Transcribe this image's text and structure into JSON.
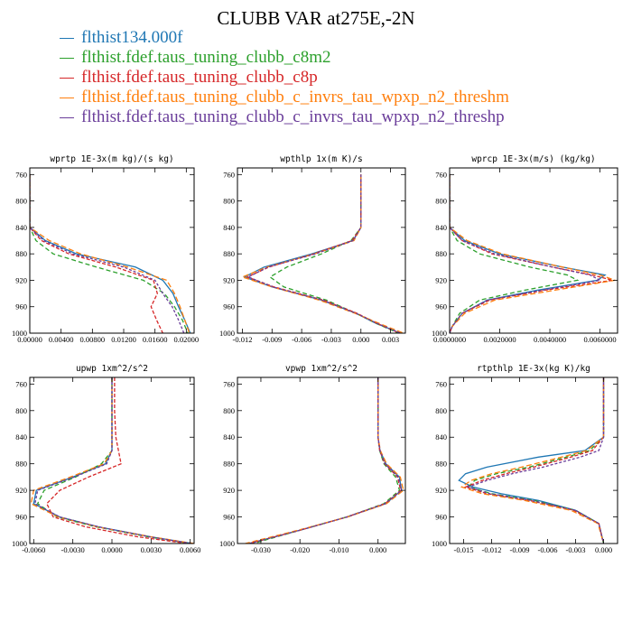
{
  "title": "CLUBB VAR at275E,-2N",
  "legend": [
    {
      "label": "flthist134.000f",
      "color": "#1f77b4"
    },
    {
      "label": "flthist.fdef.taus_tuning_clubb_c8m2",
      "color": "#2ca02c"
    },
    {
      "label": "flthist.fdef.taus_tuning_clubb_c8p",
      "color": "#d62728"
    },
    {
      "label": "flthist.fdef.taus_tuning_clubb_c_invrs_tau_wpxp_n2_threshm",
      "color": "#ff7f0e"
    },
    {
      "label": "flthist.fdef.taus_tuning_clubb_c_invrs_tau_wpxp_n2_threshp",
      "color": "#6a3d9a"
    }
  ],
  "chart_data": [
    {
      "type": "line",
      "title": "wprtp  1E-3x(m kg)/(s kg)",
      "xlim": [
        0.0,
        0.021
      ],
      "ylim": [
        1000,
        750
      ],
      "y_reversed": true,
      "xticks": [
        "0.00000",
        "0.00400",
        "0.00800",
        "0.01200",
        "0.01600",
        "0.02000"
      ],
      "xtick_values": [
        0,
        0.004,
        0.008,
        0.012,
        0.016,
        0.02
      ],
      "yticks": [
        760,
        800,
        840,
        880,
        920,
        960,
        1000
      ],
      "y": [
        760,
        800,
        840,
        860,
        880,
        900,
        920,
        940,
        960,
        980,
        1000
      ],
      "series": [
        {
          "name": "flthist134.000f",
          "values": [
            0,
            0,
            0,
            0.002,
            0.006,
            0.0135,
            0.017,
            0.0183,
            0.019,
            0.0198,
            0.0205
          ]
        },
        {
          "name": "flthist.fdef.taus_tuning_clubb_c8m2",
          "values": [
            0,
            0,
            0,
            0.0008,
            0.003,
            0.0085,
            0.0145,
            0.0172,
            0.0185,
            0.0195,
            0.0202
          ]
        },
        {
          "name": "flthist.fdef.taus_tuning_clubb_c8p",
          "values": [
            0,
            0,
            0,
            0.0015,
            0.005,
            0.011,
            0.0158,
            0.0163,
            0.0155,
            0.0162,
            0.017
          ]
        },
        {
          "name": "flthist.fdef.taus_tuning_clubb_c_invrs_tau_wpxp_n2_threshm",
          "values": [
            0,
            0,
            0,
            0.0025,
            0.0065,
            0.0125,
            0.0175,
            0.0185,
            0.0192,
            0.0198,
            0.0204
          ]
        },
        {
          "name": "flthist.fdef.taus_tuning_clubb_c_invrs_tau_wpxp_n2_threshp",
          "values": [
            0,
            0,
            0,
            0.0018,
            0.0055,
            0.012,
            0.016,
            0.017,
            0.0182,
            0.019,
            0.0197
          ]
        }
      ]
    },
    {
      "type": "line",
      "title": "wpthlp  1x(m K)/s",
      "xlim": [
        -0.0125,
        0.0045
      ],
      "ylim": [
        1000,
        750
      ],
      "y_reversed": true,
      "xticks": [
        "-0.012",
        "-0.009",
        "-0.006",
        "-0.003",
        "0.000",
        "0.003"
      ],
      "xtick_values": [
        -0.012,
        -0.009,
        -0.006,
        -0.003,
        0,
        0.003
      ],
      "yticks": [
        760,
        800,
        840,
        880,
        920,
        960,
        1000
      ],
      "y": [
        760,
        800,
        840,
        860,
        880,
        900,
        915,
        930,
        950,
        970,
        985,
        1000
      ],
      "series": [
        {
          "name": "flthist134.000f",
          "values": [
            0,
            0,
            0,
            -0.0008,
            -0.005,
            -0.0098,
            -0.0118,
            -0.009,
            -0.004,
            -0.0005,
            0.0015,
            0.004
          ]
        },
        {
          "name": "flthist.fdef.taus_tuning_clubb_c8m2",
          "values": [
            0,
            0,
            0,
            -0.001,
            -0.004,
            -0.0075,
            -0.0092,
            -0.0078,
            -0.0035,
            -0.0005,
            0.0015,
            0.0038
          ]
        },
        {
          "name": "flthist.fdef.taus_tuning_clubb_c8p",
          "values": [
            0,
            0,
            0,
            -0.0009,
            -0.0048,
            -0.0093,
            -0.0115,
            -0.0088,
            -0.0038,
            -0.0004,
            0.0016,
            0.0039
          ]
        },
        {
          "name": "flthist.fdef.taus_tuning_clubb_c_invrs_tau_wpxp_n2_threshm",
          "values": [
            0,
            0,
            0,
            -0.0007,
            -0.0047,
            -0.0095,
            -0.012,
            -0.009,
            -0.0042,
            -0.0006,
            0.0018,
            0.0043
          ]
        },
        {
          "name": "flthist.fdef.taus_tuning_clubb_c_invrs_tau_wpxp_n2_threshp",
          "values": [
            0,
            0,
            0,
            -0.0008,
            -0.0046,
            -0.0094,
            -0.0114,
            -0.0089,
            -0.0039,
            -0.0005,
            0.0016,
            0.004
          ]
        }
      ]
    },
    {
      "type": "line",
      "title": "wprcp  1E-3x(m/s) (kg/kg)",
      "xlim": [
        0.0,
        0.0067
      ],
      "ylim": [
        1000,
        750
      ],
      "y_reversed": true,
      "xticks": [
        "0.0000000",
        "0.0020000",
        "0.0040000",
        "0.0060000"
      ],
      "xtick_values": [
        0,
        0.002,
        0.004,
        0.006
      ],
      "yticks": [
        760,
        800,
        840,
        880,
        920,
        960,
        1000
      ],
      "y": [
        760,
        800,
        840,
        860,
        880,
        900,
        912,
        920,
        935,
        950,
        970,
        990,
        1000
      ],
      "series": [
        {
          "name": "flthist134.000f",
          "values": [
            0,
            0,
            0,
            0.0006,
            0.002,
            0.0045,
            0.0062,
            0.0059,
            0.0035,
            0.0015,
            0.0005,
            0.0001,
            0
          ]
        },
        {
          "name": "flthist.fdef.taus_tuning_clubb_c8m2",
          "values": [
            0,
            0,
            0,
            0.0003,
            0.0012,
            0.0032,
            0.0047,
            0.0051,
            0.003,
            0.0012,
            0.0004,
            0.0001,
            0
          ]
        },
        {
          "name": "flthist.fdef.taus_tuning_clubb_c8p",
          "values": [
            0,
            0,
            0,
            0.0005,
            0.0017,
            0.0041,
            0.0057,
            0.0065,
            0.0038,
            0.0016,
            0.0005,
            0.0001,
            0
          ]
        },
        {
          "name": "flthist.fdef.taus_tuning_clubb_c_invrs_tau_wpxp_n2_threshm",
          "values": [
            0,
            0,
            0,
            0.0007,
            0.0021,
            0.0045,
            0.006,
            0.0066,
            0.0042,
            0.0018,
            0.0006,
            0.0001,
            0
          ]
        },
        {
          "name": "flthist.fdef.taus_tuning_clubb_c_invrs_tau_wpxp_n2_threshp",
          "values": [
            0,
            0,
            0,
            0.0005,
            0.0018,
            0.0041,
            0.0056,
            0.006,
            0.0037,
            0.0015,
            0.0005,
            0.0001,
            0
          ]
        }
      ]
    },
    {
      "type": "line",
      "title": "upwp  1xm^2/s^2",
      "xlim": [
        -0.0063,
        0.0063
      ],
      "ylim": [
        1000,
        750
      ],
      "y_reversed": true,
      "xticks": [
        "-0.0060",
        "-0.0030",
        "0.0000",
        "0.0030",
        "0.0060"
      ],
      "xtick_values": [
        -0.006,
        -0.003,
        0,
        0.003,
        0.006
      ],
      "yticks": [
        760,
        800,
        840,
        880,
        920,
        960,
        1000
      ],
      "y": [
        750,
        800,
        840,
        860,
        880,
        900,
        920,
        940,
        960,
        975,
        990,
        1000
      ],
      "series": [
        {
          "name": "flthist134.000f",
          "values": [
            0,
            0,
            0,
            0,
            -0.0005,
            -0.003,
            -0.0058,
            -0.006,
            -0.004,
            -0.001,
            0.003,
            0.0062
          ]
        },
        {
          "name": "flthist.fdef.taus_tuning_clubb_c8m2",
          "values": [
            0,
            0,
            0,
            0,
            -0.0008,
            -0.0028,
            -0.0052,
            -0.0057,
            -0.0042,
            -0.0012,
            0.0028,
            0.006
          ]
        },
        {
          "name": "flthist.fdef.taus_tuning_clubb_c8p",
          "values": [
            0.0002,
            0.0002,
            0.0003,
            0.0005,
            0.0007,
            -0.0018,
            -0.004,
            -0.005,
            -0.0045,
            -0.002,
            0.002,
            0.0058
          ]
        },
        {
          "name": "flthist.fdef.taus_tuning_clubb_c_invrs_tau_wpxp_n2_threshm",
          "values": [
            0,
            0,
            0,
            0,
            -0.0006,
            -0.0032,
            -0.006,
            -0.0062,
            -0.0041,
            -0.0011,
            0.003,
            0.0063
          ]
        },
        {
          "name": "flthist.fdef.taus_tuning_clubb_c_invrs_tau_wpxp_n2_threshp",
          "values": [
            0,
            0,
            0,
            0,
            -0.0004,
            -0.0029,
            -0.0057,
            -0.0059,
            -0.004,
            -0.001,
            0.0029,
            0.0061
          ]
        }
      ]
    },
    {
      "type": "line",
      "title": "vpwp  1xm^2/s^2",
      "xlim": [
        -0.036,
        0.007
      ],
      "ylim": [
        1000,
        750
      ],
      "y_reversed": true,
      "xticks": [
        "-0.030",
        "-0.020",
        "-0.010",
        "0.000"
      ],
      "xtick_values": [
        -0.03,
        -0.02,
        -0.01,
        0
      ],
      "yticks": [
        760,
        800,
        840,
        880,
        920,
        960,
        1000
      ],
      "y": [
        750,
        800,
        840,
        860,
        880,
        900,
        920,
        940,
        960,
        980,
        1000
      ],
      "series": [
        {
          "name": "flthist134.000f",
          "values": [
            0,
            0,
            0,
            0.0005,
            0.002,
            0.0055,
            0.006,
            0.002,
            -0.008,
            -0.02,
            -0.033
          ]
        },
        {
          "name": "flthist.fdef.taus_tuning_clubb_c8m2",
          "values": [
            0,
            0,
            0,
            0.0004,
            0.0015,
            0.0045,
            0.0055,
            0.0015,
            -0.008,
            -0.02,
            -0.032
          ]
        },
        {
          "name": "flthist.fdef.taus_tuning_clubb_c8p",
          "values": [
            0,
            0,
            0,
            0.0004,
            0.0017,
            0.005,
            0.0058,
            0.0018,
            -0.008,
            -0.02,
            -0.033
          ]
        },
        {
          "name": "flthist.fdef.taus_tuning_clubb_c_invrs_tau_wpxp_n2_threshm",
          "values": [
            0,
            0,
            0,
            0.0006,
            0.0022,
            0.0057,
            0.0065,
            0.0022,
            -0.0078,
            -0.0205,
            -0.034
          ]
        },
        {
          "name": "flthist.fdef.taus_tuning_clubb_c_invrs_tau_wpxp_n2_threshp",
          "values": [
            0,
            0,
            0,
            0.0005,
            0.0018,
            0.0052,
            0.006,
            0.0019,
            -0.0079,
            -0.02,
            -0.033
          ]
        }
      ]
    },
    {
      "type": "line",
      "title": "rtpthlp  1E-3x(kg K)/kg",
      "xlim": [
        -0.0165,
        0.0015
      ],
      "ylim": [
        1000,
        750
      ],
      "y_reversed": true,
      "xticks": [
        "-0.015",
        "-0.012",
        "-0.009",
        "-0.006",
        "-0.003",
        "0.000"
      ],
      "xtick_values": [
        -0.015,
        -0.012,
        -0.009,
        -0.006,
        -0.003,
        0
      ],
      "yticks": [
        760,
        800,
        840,
        880,
        920,
        960,
        1000
      ],
      "y": [
        750,
        800,
        840,
        860,
        870,
        885,
        895,
        905,
        915,
        925,
        935,
        950,
        970,
        1000
      ],
      "series": [
        {
          "name": "flthist134.000f",
          "values": [
            0,
            0,
            0,
            -0.002,
            -0.007,
            -0.0125,
            -0.0148,
            -0.0155,
            -0.014,
            -0.011,
            -0.007,
            -0.003,
            -0.0005,
            0
          ]
        },
        {
          "name": "flthist.fdef.taus_tuning_clubb_c8m2",
          "values": [
            0,
            0,
            0,
            -0.0015,
            -0.004,
            -0.008,
            -0.0115,
            -0.0138,
            -0.0145,
            -0.012,
            -0.0075,
            -0.003,
            -0.0005,
            0
          ]
        },
        {
          "name": "flthist.fdef.taus_tuning_clubb_c8p",
          "values": [
            0,
            0,
            0,
            -0.0012,
            -0.0035,
            -0.0075,
            -0.0105,
            -0.013,
            -0.0148,
            -0.0125,
            -0.008,
            -0.0032,
            -0.0005,
            0
          ]
        },
        {
          "name": "flthist.fdef.taus_tuning_clubb_c_invrs_tau_wpxp_n2_threshm",
          "values": [
            0,
            0,
            0,
            -0.0018,
            -0.0045,
            -0.0088,
            -0.012,
            -0.0142,
            -0.0152,
            -0.013,
            -0.0085,
            -0.0035,
            -0.0006,
            0
          ]
        },
        {
          "name": "flthist.fdef.taus_tuning_clubb_c_invrs_tau_wpxp_n2_threshp",
          "values": [
            0,
            0,
            0,
            -0.0005,
            -0.0025,
            -0.0065,
            -0.0098,
            -0.0125,
            -0.0145,
            -0.0122,
            -0.0078,
            -0.003,
            -0.0005,
            0
          ]
        }
      ]
    }
  ]
}
